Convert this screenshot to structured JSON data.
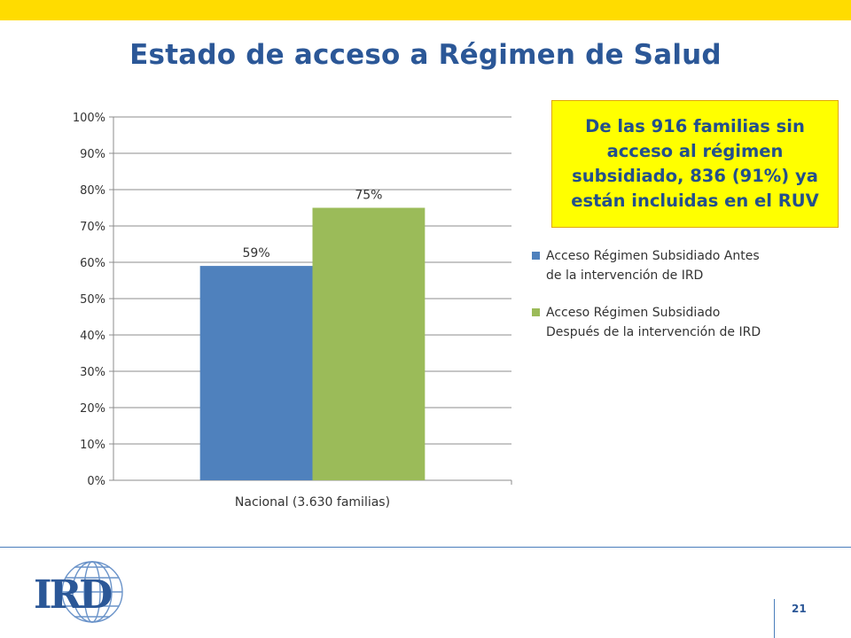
{
  "slide": {
    "title": "Estado de acceso a Régimen de Salud",
    "page_number": "21",
    "accent_color": "#ffdc00",
    "title_color": "#2b5797"
  },
  "callout": {
    "text": "De las 916 familias sin acceso al régimen subsidiado, 836 (91%) ya están incluidas en el RUV",
    "background": "#ffff00"
  },
  "logo": {
    "text": "IRD",
    "icon": "globe-icon"
  },
  "chart_data": {
    "type": "bar",
    "categories": [
      "Nacional  (3.630 familias)"
    ],
    "series": [
      {
        "name": "Acceso Régimen Subsidiado Antes  de la intervención de  IRD",
        "values": [
          59
        ],
        "data_labels": [
          "59%"
        ],
        "color": "#4f81bd"
      },
      {
        "name": "Acceso Régimen Subsidiado Después de la intervención de IRD",
        "values": [
          75
        ],
        "data_labels": [
          "75%"
        ],
        "color": "#9bbb59"
      }
    ],
    "y_ticks": [
      "0%",
      "10%",
      "20%",
      "30%",
      "40%",
      "50%",
      "60%",
      "70%",
      "80%",
      "90%",
      "100%"
    ],
    "ylim": [
      0,
      100
    ],
    "grid": true,
    "legend_position": "right"
  }
}
